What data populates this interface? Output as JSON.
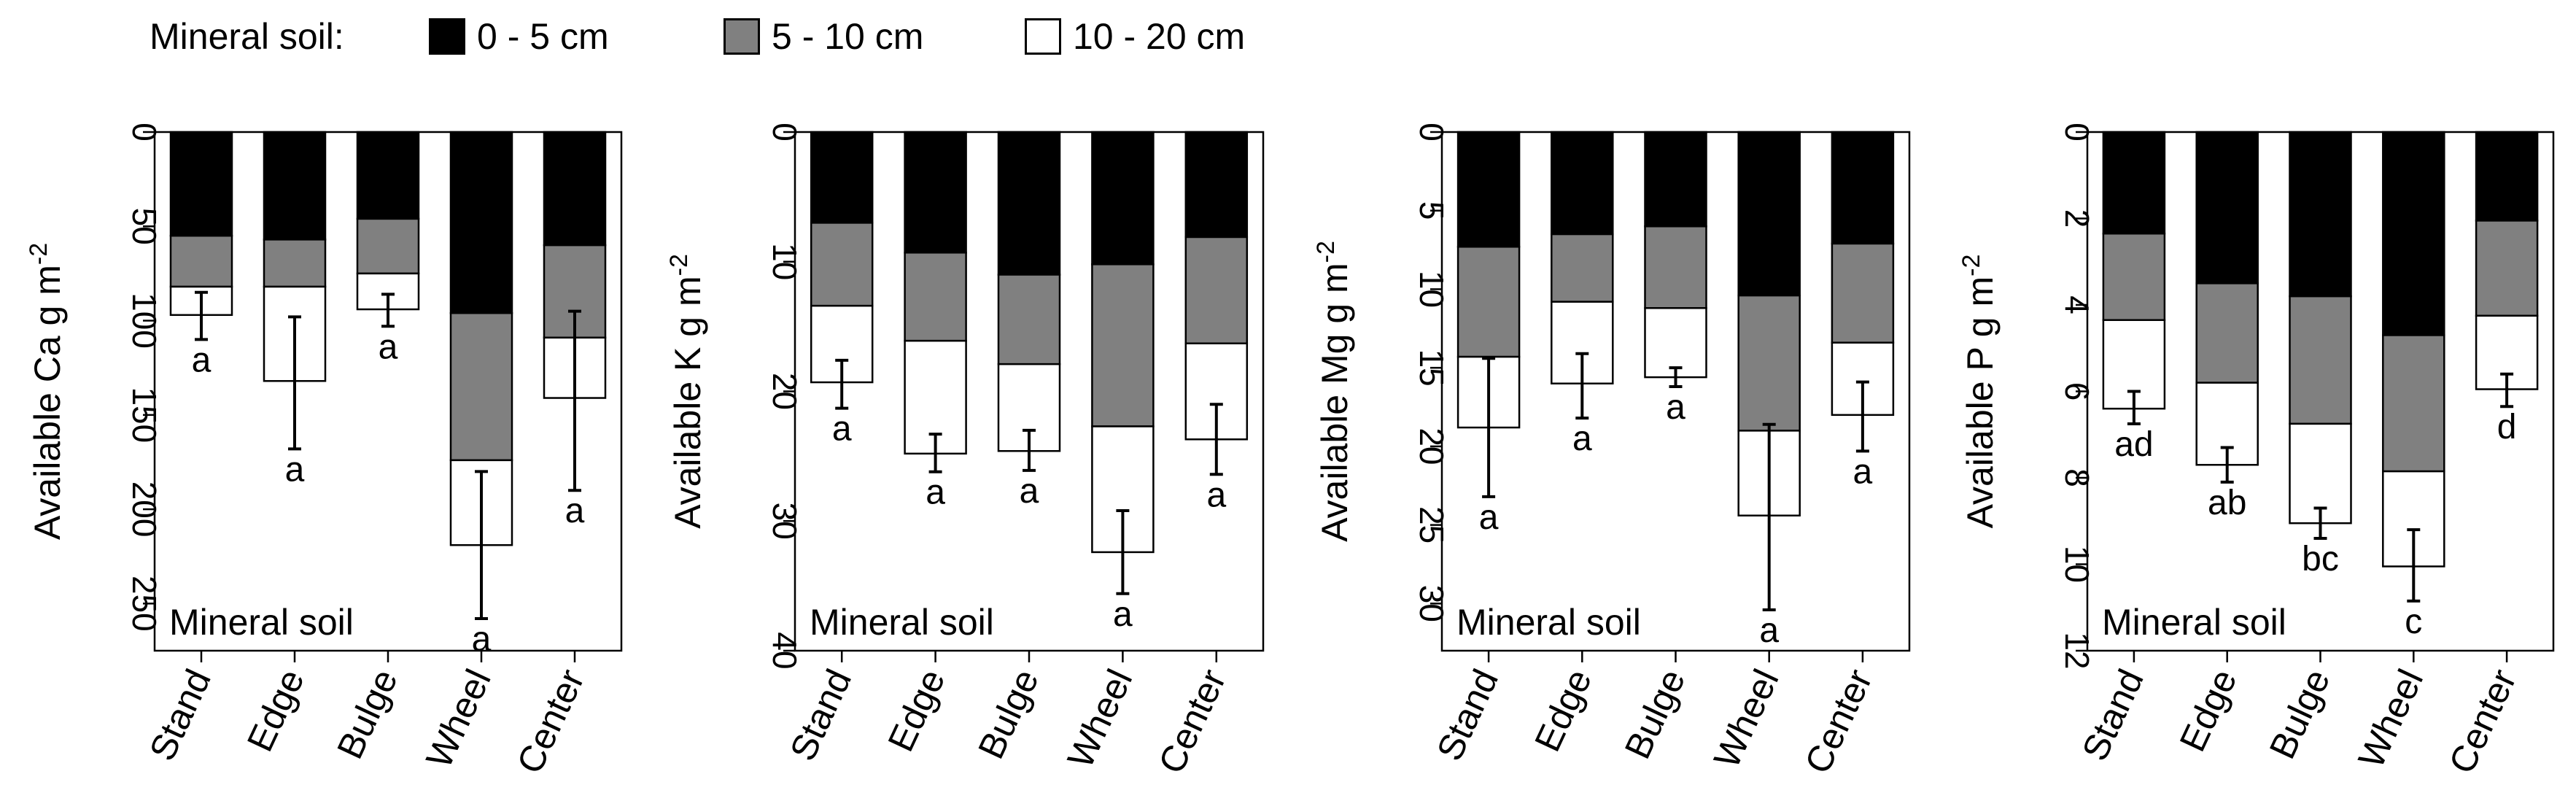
{
  "legend": {
    "title": "Mineral soil:",
    "items": [
      {
        "label": "0 - 5 cm",
        "color": "#000000"
      },
      {
        "label": "5 - 10 cm",
        "color": "#808080"
      },
      {
        "label": "10 - 20 cm",
        "color": "#ffffff"
      }
    ]
  },
  "chart_data": [
    {
      "type": "bar",
      "stacked": true,
      "categories": [
        "Stand",
        "Edge",
        "Bulge",
        "Wheel",
        "Center"
      ],
      "series": [
        {
          "name": "0 - 5 cm",
          "cumulative": [
            55,
            57,
            46,
            96,
            60
          ]
        },
        {
          "name": "5 - 10 cm",
          "cumulative": [
            82,
            82,
            75,
            174,
            109
          ]
        },
        {
          "name": "10 - 20 cm",
          "cumulative": [
            97,
            132,
            94,
            219,
            141
          ]
        }
      ],
      "errors": [
        [
          85,
          110
        ],
        [
          98,
          168
        ],
        [
          86,
          103
        ],
        [
          180,
          258
        ],
        [
          95,
          190
        ]
      ],
      "letters": [
        "a",
        "a",
        "a",
        "a",
        "a"
      ],
      "ylabel_main": "Available Ca  g m",
      "ylabel_sup": "-2",
      "ylim": [
        0,
        275
      ],
      "yticks": [
        0,
        50,
        100,
        150,
        200,
        250
      ],
      "inverted": true,
      "annotation": "Mineral soil"
    },
    {
      "type": "bar",
      "stacked": true,
      "categories": [
        "Stand",
        "Edge",
        "Bulge",
        "Wheel",
        "Center"
      ],
      "series": [
        {
          "name": "0 - 5 cm",
          "cumulative": [
            7,
            9.3,
            11,
            10.2,
            8.1
          ]
        },
        {
          "name": "5 - 10 cm",
          "cumulative": [
            13.4,
            16.1,
            17.9,
            22.7,
            16.3
          ]
        },
        {
          "name": "10 - 20 cm",
          "cumulative": [
            19.3,
            24.8,
            24.6,
            32.4,
            23.7
          ]
        }
      ],
      "errors": [
        [
          17.6,
          21.3
        ],
        [
          23.3,
          26.2
        ],
        [
          23,
          26.1
        ],
        [
          29.2,
          35.6
        ],
        [
          21,
          26.4
        ]
      ],
      "letters": [
        "a",
        "a",
        "a",
        "a",
        "a"
      ],
      "ylabel_main": "Available K g m",
      "ylabel_sup": "-2",
      "ylim": [
        0,
        40
      ],
      "yticks": [
        0,
        10,
        20,
        30,
        40
      ],
      "inverted": true,
      "annotation": "Mineral soil"
    },
    {
      "type": "bar",
      "stacked": true,
      "categories": [
        "Stand",
        "Edge",
        "Bulge",
        "Wheel",
        "Center"
      ],
      "series": [
        {
          "name": "0 - 5 cm",
          "cumulative": [
            7.3,
            6.5,
            6,
            10.4,
            7.1
          ]
        },
        {
          "name": "5 - 10 cm",
          "cumulative": [
            14.3,
            10.8,
            11.2,
            19,
            13.4
          ]
        },
        {
          "name": "10 - 20 cm",
          "cumulative": [
            18.8,
            16,
            15.6,
            24.4,
            18
          ]
        }
      ],
      "errors": [
        [
          14.4,
          23.2
        ],
        [
          14.1,
          18.2
        ],
        [
          15,
          16.2
        ],
        [
          18.6,
          30.4
        ],
        [
          15.9,
          20.3
        ]
      ],
      "letters": [
        "a",
        "a",
        "a",
        "a",
        "a"
      ],
      "ylabel_main": "Available Mg  g m",
      "ylabel_sup": "-2",
      "ylim": [
        0,
        33
      ],
      "yticks": [
        0,
        5,
        10,
        15,
        20,
        25,
        30
      ],
      "inverted": true,
      "annotation": "Mineral soil"
    },
    {
      "type": "bar",
      "stacked": true,
      "categories": [
        "Stand",
        "Edge",
        "Bulge",
        "Wheel",
        "Center"
      ],
      "series": [
        {
          "name": "0 - 5 cm",
          "cumulative": [
            2.35,
            3.5,
            3.8,
            4.7,
            2.05
          ]
        },
        {
          "name": "5 - 10 cm",
          "cumulative": [
            4.35,
            5.8,
            6.75,
            7.85,
            4.25
          ]
        },
        {
          "name": "10 - 20 cm",
          "cumulative": [
            6.4,
            7.7,
            9.05,
            10.05,
            5.95
          ]
        }
      ],
      "errors": [
        [
          6,
          6.75
        ],
        [
          7.3,
          8.1
        ],
        [
          8.7,
          9.4
        ],
        [
          9.2,
          10.85
        ],
        [
          5.6,
          6.35
        ]
      ],
      "letters": [
        "ad",
        "ab",
        "bc",
        "c",
        "d"
      ],
      "ylabel_main": "Available P  g m",
      "ylabel_sup": "-2",
      "ylim": [
        0,
        12
      ],
      "yticks": [
        0,
        2,
        4,
        6,
        8,
        10,
        12
      ],
      "inverted": true,
      "annotation": "Mineral soil"
    }
  ]
}
